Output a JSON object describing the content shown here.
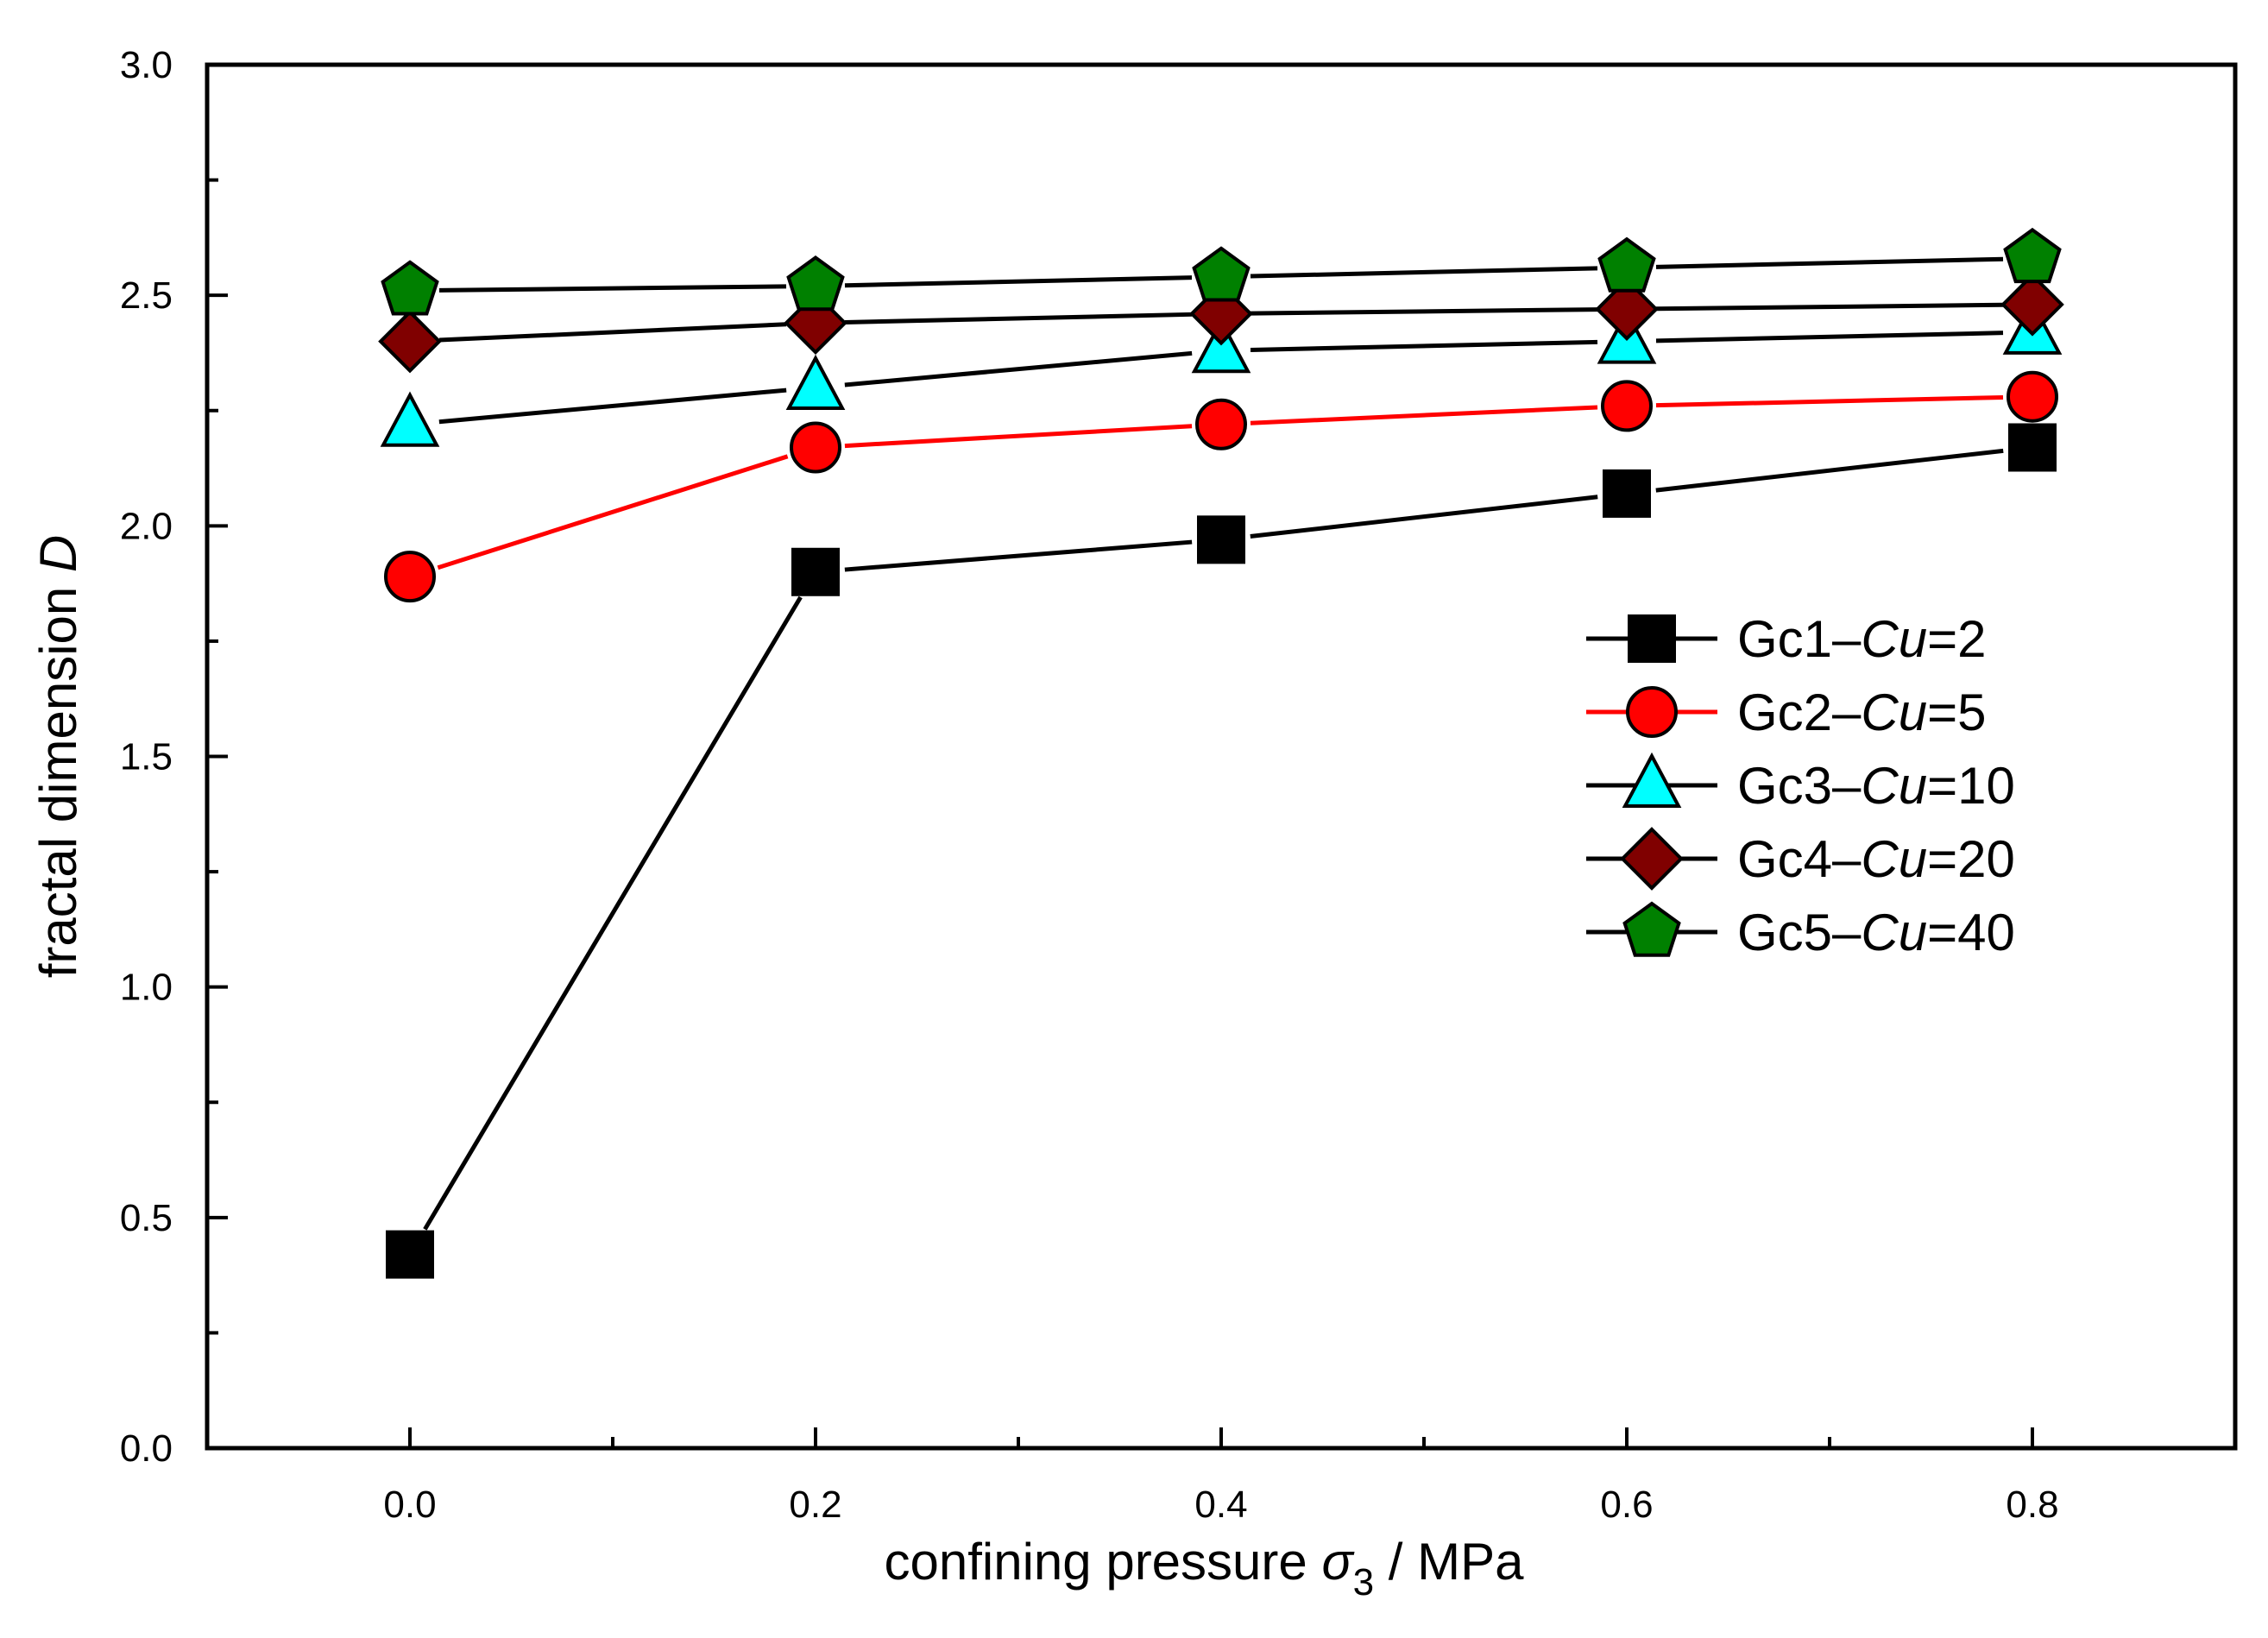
{
  "chart_data": {
    "type": "line",
    "title": "",
    "xlabel": {
      "prefix": "confining pressure ",
      "symbol": "σ",
      "subscript": "3",
      "suffix": " / MPa"
    },
    "ylabel": {
      "prefix": "fractal dimension ",
      "symbol": "D"
    },
    "xlim": [
      -0.1,
      0.9
    ],
    "ylim": [
      0.0,
      3.0
    ],
    "x_ticks": [
      {
        "value": 0.0,
        "label": "0.0"
      },
      {
        "value": 0.2,
        "label": "0.2"
      },
      {
        "value": 0.4,
        "label": "0.4"
      },
      {
        "value": 0.6,
        "label": "0.6"
      },
      {
        "value": 0.8,
        "label": "0.8"
      }
    ],
    "x_minor_ticks": [
      -0.1,
      0.1,
      0.3,
      0.5,
      0.7,
      0.9
    ],
    "y_ticks": [
      {
        "value": 0.0,
        "label": "0.0"
      },
      {
        "value": 0.5,
        "label": "0.5"
      },
      {
        "value": 1.0,
        "label": "1.0"
      },
      {
        "value": 1.5,
        "label": "1.5"
      },
      {
        "value": 2.0,
        "label": "2.0"
      },
      {
        "value": 2.5,
        "label": "2.5"
      },
      {
        "value": 3.0,
        "label": "3.0"
      }
    ],
    "y_minor_ticks": [
      0.25,
      0.75,
      1.25,
      1.75,
      2.25,
      2.75
    ],
    "x": [
      0.0,
      0.2,
      0.4,
      0.6,
      0.8
    ],
    "grid": false,
    "legend_position": "right-middle",
    "series": [
      {
        "name": "Gc1",
        "cu_label": "Cu",
        "cu_value": "=2",
        "marker": "square",
        "line_color": "#000000",
        "marker_fill": "#000000",
        "values": [
          0.42,
          1.9,
          1.97,
          2.07,
          2.17
        ]
      },
      {
        "name": "Gc2",
        "cu_label": "Cu",
        "cu_value": "=5",
        "marker": "circle",
        "line_color": "#ff0000",
        "marker_fill": "#ff0000",
        "values": [
          1.89,
          2.17,
          2.22,
          2.26,
          2.28
        ]
      },
      {
        "name": "Gc3",
        "cu_label": "Cu",
        "cu_value": "=10",
        "marker": "triangle",
        "line_color": "#000000",
        "marker_fill": "#00ffff",
        "values": [
          2.22,
          2.3,
          2.38,
          2.4,
          2.42
        ]
      },
      {
        "name": "Gc4",
        "cu_label": "Cu",
        "cu_value": "=20",
        "marker": "diamond",
        "line_color": "#000000",
        "marker_fill": "#800000",
        "values": [
          2.4,
          2.44,
          2.46,
          2.47,
          2.48
        ]
      },
      {
        "name": "Gc5",
        "cu_label": "Cu",
        "cu_value": "=40",
        "marker": "pentagon",
        "line_color": "#000000",
        "marker_fill": "#008000",
        "values": [
          2.51,
          2.52,
          2.54,
          2.56,
          2.58
        ]
      }
    ]
  },
  "legend_dash": "–"
}
